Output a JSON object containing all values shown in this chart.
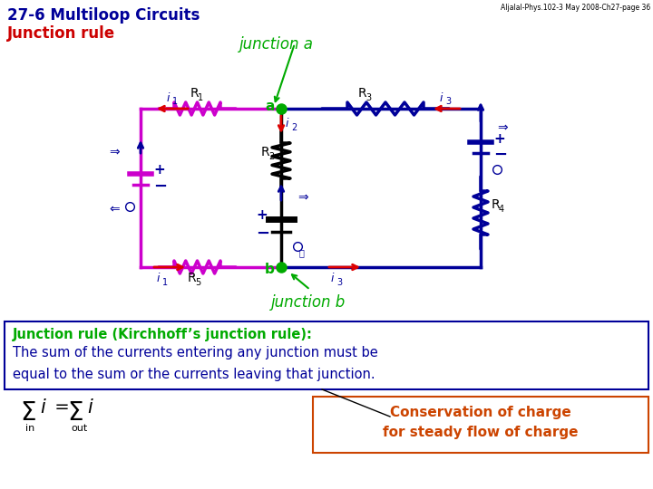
{
  "title_line1": "27-6 Multiloop Circuits",
  "title_line2": "Junction rule",
  "header_text": "Aljalal-Phys.102-3 May 2008-Ch27-page 36",
  "junction_a_label": "junction a",
  "junction_b_label": "junction b",
  "junction_rule_title": "Junction rule (Kirchhoff’s junction rule):",
  "junction_rule_body1": "The sum of the currents entering any junction must be",
  "junction_rule_body2": "equal to the sum or the currents leaving that junction.",
  "conservation_line1": "Conservation of charge",
  "conservation_line2": "for steady flow of charge",
  "color_magenta": "#CC00CC",
  "color_red": "#DD0000",
  "color_green": "#00AA00",
  "color_navy": "#000099",
  "color_orange": "#CC4400",
  "color_black": "#000000",
  "color_blue_title": "#000099",
  "color_red_title": "#CC0000",
  "bg_color": "#FFFFFF",
  "xl": 155,
  "xm": 310,
  "xr": 530,
  "yt": 120,
  "yb": 295
}
